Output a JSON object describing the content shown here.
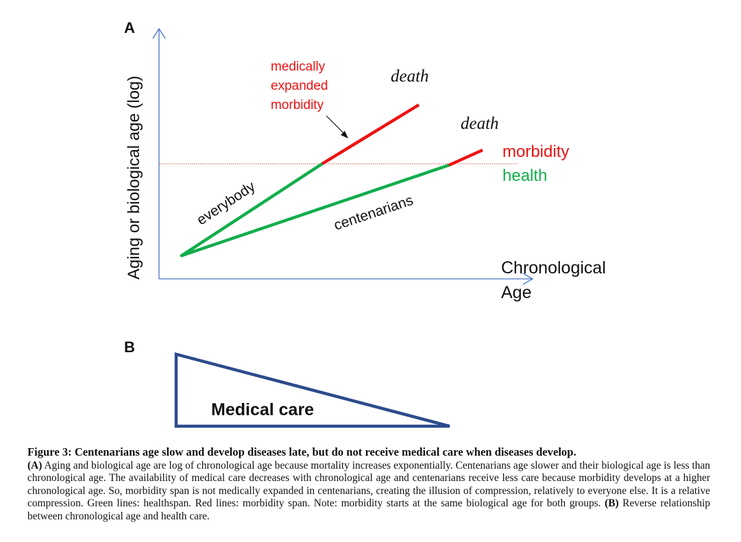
{
  "colors": {
    "axis": "#4a74c4",
    "health": "#12ad4b",
    "morbidity": "#ee1111",
    "triangle": "#2c4b8c",
    "dotted": "#e05050",
    "text": "#111111"
  },
  "panel_a": {
    "label": "A",
    "y_axis_label": "Aging or biological age (log)",
    "x_axis_label_line1": "Chronological",
    "x_axis_label_line2": "Age",
    "everybody_label": "everybody",
    "centenarians_label": "centenarians",
    "death_label_everybody": "death",
    "death_label_centenarians": "death",
    "medically_line1": "medically",
    "medically_line2": "expanded",
    "medically_line3": "morbidity",
    "legend_morbidity": "morbidity",
    "legend_health": "health"
  },
  "panel_b": {
    "label": "B",
    "triangle_label": "Medical care"
  },
  "caption": {
    "title": "Figure 3: Centenarians age slow and develop diseases late, but do not receive medical care when diseases develop.",
    "a_marker": "(A)",
    "text_a": " Aging and biological age are log of chronological age because mortality increases exponentially. Centenarians age slower and their biological age is less than chronological age. The availability of medical care decreases with chronological age and centenarians receive less care because morbidity develops at a higher chronological age. So, morbidity span is not medically expanded in centenarians, creating the illusion of compression, relatively to everyone else. It is a relative compression. Green lines: healthspan. Red lines: morbidity span. Note: morbidity starts at the same biological age for both groups. ",
    "b_marker": "(B)",
    "text_b": " Reverse relationship between chronological age and health care."
  }
}
